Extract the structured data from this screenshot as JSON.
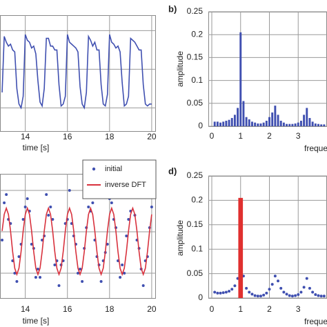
{
  "chart_data": [
    {
      "type": "line",
      "x_label": "time [s]",
      "xlim": [
        12.8,
        20.2
      ],
      "xticks": [
        14,
        16,
        18,
        20
      ],
      "ylim": [
        -0.6,
        2.4
      ],
      "yticks": [
        0,
        1,
        2
      ],
      "grid": true,
      "series": [
        {
          "type": "line",
          "color": "#3f4fb0",
          "x": [
            12.9,
            13,
            13.1,
            13.2,
            13.3,
            13.4,
            13.5,
            13.6,
            13.7,
            13.8,
            13.9,
            14,
            14.1,
            14.2,
            14.3,
            14.4,
            14.5,
            14.6,
            14.7,
            14.8,
            14.9,
            15,
            15.1,
            15.2,
            15.3,
            15.4,
            15.5,
            15.6,
            15.7,
            15.8,
            15.9,
            16,
            16.1,
            16.2,
            16.3,
            16.4,
            16.5,
            16.6,
            16.7,
            16.8,
            16.9,
            17,
            17.1,
            17.2,
            17.3,
            17.4,
            17.5,
            17.6,
            17.7,
            17.8,
            17.9,
            18,
            18.1,
            18.2,
            18.3,
            18.4,
            18.5,
            18.6,
            18.7,
            18.8,
            18.9,
            19,
            19.1,
            19.2,
            19.3,
            19.4,
            19.5,
            19.6,
            19.7,
            19.8,
            19.9,
            20
          ],
          "values": [
            0.4,
            1.85,
            1.7,
            1.6,
            1.65,
            1.5,
            1.45,
            0.5,
            0.1,
            0.0,
            0.3,
            1.9,
            1.75,
            1.7,
            1.55,
            1.6,
            1.4,
            0.7,
            0.15,
            0.05,
            0.5,
            1.8,
            1.8,
            1.6,
            1.6,
            1.5,
            1.5,
            0.6,
            0.05,
            0.1,
            0.3,
            1.9,
            1.7,
            1.65,
            1.6,
            1.55,
            1.45,
            0.55,
            0.1,
            0.0,
            0.4,
            1.85,
            1.75,
            1.6,
            1.7,
            1.5,
            1.5,
            0.6,
            0.1,
            0.05,
            0.35,
            1.9,
            1.7,
            1.65,
            1.55,
            1.6,
            1.45,
            0.65,
            0.05,
            0.1,
            0.3,
            1.8,
            1.75,
            1.7,
            1.6,
            1.5,
            1.5,
            0.6,
            0.1,
            0.05,
            0.1,
            0.1
          ]
        }
      ]
    },
    {
      "type": "bar",
      "label": "b)",
      "x_label": "frequency",
      "y_label": "amplitude",
      "xlim": [
        -0.12,
        4.0
      ],
      "xticks": [
        0,
        1,
        2,
        3
      ],
      "ylim": [
        0,
        0.25
      ],
      "yticks": [
        0,
        0.05,
        0.1,
        0.15,
        0.2,
        0.25
      ],
      "grid": true,
      "series": [
        {
          "type": "bar",
          "color": "#3f4fb0",
          "x": [
            0.1,
            0.2,
            0.3,
            0.4,
            0.5,
            0.6,
            0.7,
            0.8,
            0.9,
            1,
            1.1,
            1.2,
            1.3,
            1.4,
            1.5,
            1.6,
            1.7,
            1.8,
            1.9,
            2,
            2.1,
            2.2,
            2.3,
            2.4,
            2.5,
            2.6,
            2.7,
            2.8,
            2.9,
            3,
            3.1,
            3.2,
            3.3,
            3.4,
            3.5,
            3.6,
            3.7,
            3.8,
            3.9
          ],
          "values": [
            0.01,
            0.01,
            0.008,
            0.01,
            0.012,
            0.014,
            0.018,
            0.025,
            0.04,
            0.205,
            0.055,
            0.02,
            0.015,
            0.01,
            0.008,
            0.006,
            0.006,
            0.008,
            0.012,
            0.02,
            0.03,
            0.045,
            0.025,
            0.012,
            0.008,
            0.005,
            0.005,
            0.005,
            0.006,
            0.008,
            0.012,
            0.025,
            0.04,
            0.018,
            0.01,
            0.006,
            0.005,
            0.004,
            0.004
          ]
        }
      ]
    },
    {
      "type": "line",
      "x_label": "time [s]",
      "xlim": [
        12.8,
        20.2
      ],
      "xticks": [
        14,
        16,
        18,
        20
      ],
      "ylim": [
        -0.6,
        2.4
      ],
      "yticks": [
        0,
        1,
        2
      ],
      "grid": true,
      "series": [
        {
          "type": "scatter",
          "name": "initial",
          "color": "#3f4fb0",
          "x": [
            12.9,
            13,
            13.1,
            13.2,
            13.3,
            13.4,
            13.5,
            13.6,
            13.7,
            13.8,
            13.9,
            14,
            14.1,
            14.2,
            14.3,
            14.4,
            14.5,
            14.6,
            14.7,
            14.8,
            14.9,
            15,
            15.1,
            15.2,
            15.3,
            15.4,
            15.5,
            15.6,
            15.7,
            15.8,
            15.9,
            16,
            16.1,
            16.2,
            16.3,
            16.4,
            16.5,
            16.6,
            16.7,
            16.8,
            16.9,
            17,
            17.1,
            17.2,
            17.3,
            17.4,
            17.5,
            17.6,
            17.7,
            17.8,
            17.9,
            18,
            18.1,
            18.2,
            18.3,
            18.4,
            18.5,
            18.6,
            18.7,
            18.8,
            18.9,
            19,
            19.1,
            19.2,
            19.3,
            19.4,
            19.5,
            19.6,
            19.7,
            19.8,
            19.9,
            20
          ],
          "values": [
            0.8,
            1.7,
            1.9,
            1.3,
            1.2,
            0.3,
            0.0,
            -0.2,
            0.4,
            0.7,
            1.3,
            1.6,
            1.8,
            1.5,
            0.7,
            0.6,
            -0.1,
            0.1,
            -0.1,
            0.8,
            0.9,
            1.9,
            1.4,
            1.6,
            1.3,
            0.2,
            0.3,
            -0.3,
            0.2,
            0.3,
            1.2,
            1.3,
            2.0,
            1.2,
            0.9,
            0.7,
            0.0,
            0.1,
            -0.2,
            0.6,
            1.1,
            1.6,
            1.5,
            1.7,
            0.8,
            0.4,
            0.2,
            -0.2,
            0.3,
            0.5,
            0.7,
            1.8,
            1.7,
            1.3,
            1.1,
            0.3,
            -0.1,
            0.2,
            0.0,
            0.9,
            1.3,
            1.5,
            1.9,
            1.4,
            0.8,
            0.6,
            0.1,
            -0.3,
            0.3,
            0.4,
            1.1,
            1.6
          ]
        },
        {
          "type": "line",
          "name": "inverse DFT",
          "color": "#d8303c",
          "x": [
            12.9,
            13,
            13.1,
            13.2,
            13.3,
            13.4,
            13.5,
            13.6,
            13.7,
            13.8,
            13.9,
            14,
            14.1,
            14.2,
            14.3,
            14.4,
            14.5,
            14.6,
            14.7,
            14.8,
            14.9,
            15,
            15.1,
            15.2,
            15.3,
            15.4,
            15.5,
            15.6,
            15.7,
            15.8,
            15.9,
            16,
            16.1,
            16.2,
            16.3,
            16.4,
            16.5,
            16.6,
            16.7,
            16.8,
            16.9,
            17,
            17.1,
            17.2,
            17.3,
            17.4,
            17.5,
            17.6,
            17.7,
            17.8,
            17.9,
            18,
            18.1,
            18.2,
            18.3,
            18.4,
            18.5,
            18.6,
            18.7,
            18.8,
            18.9,
            19,
            19.1,
            19.2,
            19.3,
            19.4,
            19.5,
            19.6,
            19.7,
            19.8,
            19.9,
            20
          ],
          "values": [
            1.02,
            1.42,
            1.57,
            1.42,
            1.02,
            0.52,
            0.12,
            -0.03,
            0.12,
            0.52,
            1.02,
            1.42,
            1.57,
            1.42,
            1.02,
            0.52,
            0.12,
            -0.03,
            0.12,
            0.52,
            1.02,
            1.42,
            1.57,
            1.42,
            1.02,
            0.52,
            0.12,
            -0.03,
            0.12,
            0.52,
            1.02,
            1.42,
            1.57,
            1.42,
            1.02,
            0.52,
            0.12,
            -0.03,
            0.12,
            0.52,
            1.02,
            1.42,
            1.57,
            1.42,
            1.02,
            0.52,
            0.12,
            -0.03,
            0.12,
            0.52,
            1.02,
            1.42,
            1.57,
            1.42,
            1.02,
            0.52,
            0.12,
            -0.03,
            0.12,
            0.52,
            1.02,
            1.42,
            1.57,
            1.42,
            1.02,
            0.52,
            0.12,
            -0.03,
            0.12,
            0.52,
            1.02,
            1.42
          ]
        }
      ]
    },
    {
      "type": "bar",
      "label": "d)",
      "x_label": "frequency",
      "y_label": "amplitude",
      "xlim": [
        -0.12,
        4.0
      ],
      "xticks": [
        0,
        1,
        2,
        3
      ],
      "ylim": [
        0,
        0.25
      ],
      "yticks": [
        0,
        0.05,
        0.1,
        0.15,
        0.2,
        0.25
      ],
      "grid": true,
      "series": [
        {
          "type": "scatter",
          "color": "#3f4fb0",
          "x": [
            0.1,
            0.2,
            0.3,
            0.4,
            0.5,
            0.6,
            0.7,
            0.8,
            0.9,
            1.1,
            1.2,
            1.3,
            1.4,
            1.5,
            1.6,
            1.7,
            1.8,
            1.9,
            2,
            2.1,
            2.2,
            2.3,
            2.4,
            2.5,
            2.6,
            2.7,
            2.8,
            2.9,
            3,
            3.1,
            3.2,
            3.3,
            3.4,
            3.5,
            3.6,
            3.7,
            3.8,
            3.9
          ],
          "values": [
            0.012,
            0.01,
            0.01,
            0.011,
            0.012,
            0.014,
            0.018,
            0.025,
            0.04,
            0.045,
            0.02,
            0.012,
            0.008,
            0.005,
            0.004,
            0.004,
            0.006,
            0.01,
            0.018,
            0.028,
            0.045,
            0.035,
            0.02,
            0.012,
            0.008,
            0.005,
            0.004,
            0.005,
            0.007,
            0.012,
            0.022,
            0.04,
            0.02,
            0.012,
            0.007,
            0.005,
            0.004,
            0.004
          ]
        },
        {
          "type": "bar",
          "color": "#e0302f",
          "x": [
            1
          ],
          "values": [
            0.205
          ]
        }
      ]
    }
  ]
}
